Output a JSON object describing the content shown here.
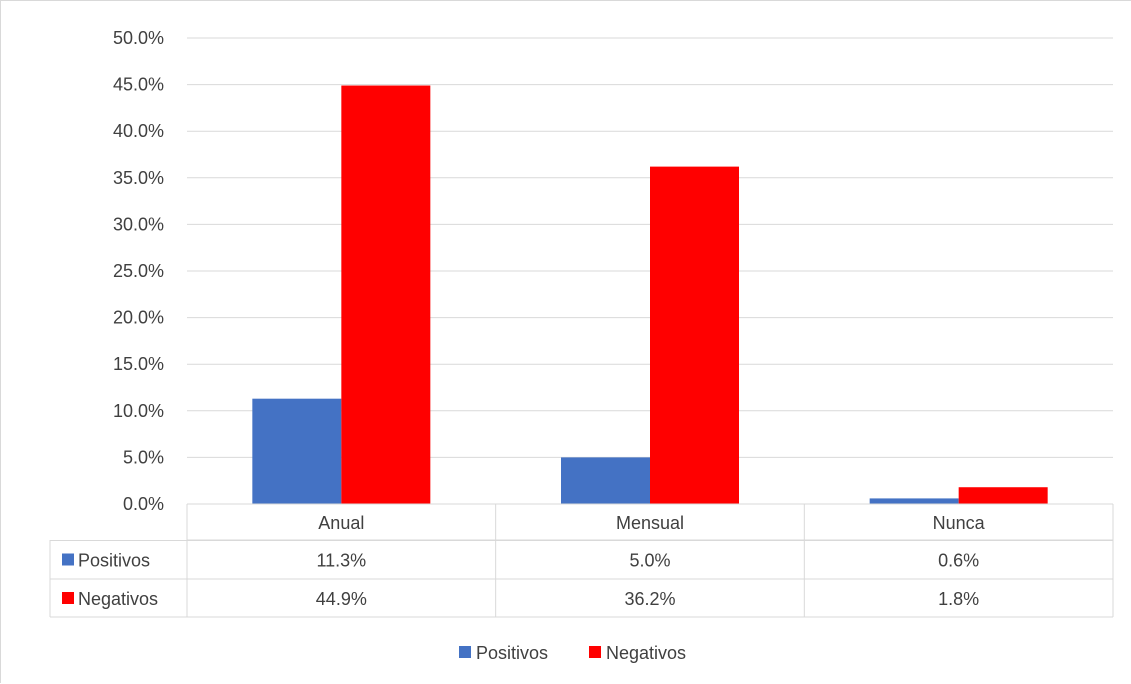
{
  "chart_data": {
    "type": "bar",
    "title": "",
    "xlabel": "",
    "ylabel": "",
    "categories": [
      "Anual",
      "Mensual",
      "Nunca"
    ],
    "series": [
      {
        "name": "Positivos",
        "color": "#4472c4",
        "values": [
          11.3,
          5.0,
          0.6
        ],
        "labels": [
          "11.3%",
          "5.0%",
          "0.6%"
        ]
      },
      {
        "name": "Negativos",
        "color": "#ff0000",
        "values": [
          44.9,
          36.2,
          1.8
        ],
        "labels": [
          "44.9%",
          "36.2%",
          "1.8%"
        ]
      }
    ],
    "ylim": [
      0,
      50
    ],
    "yticks": [
      0,
      5,
      10,
      15,
      20,
      25,
      30,
      35,
      40,
      45,
      50
    ],
    "ytick_labels": [
      "0.0%",
      "5.0%",
      "10.0%",
      "15.0%",
      "20.0%",
      "25.0%",
      "30.0%",
      "35.0%",
      "40.0%",
      "45.0%",
      "50.0%"
    ],
    "grid": true,
    "data_table": true,
    "legend": {
      "position": "bottom",
      "entries": [
        "Positivos",
        "Negativos"
      ]
    }
  }
}
